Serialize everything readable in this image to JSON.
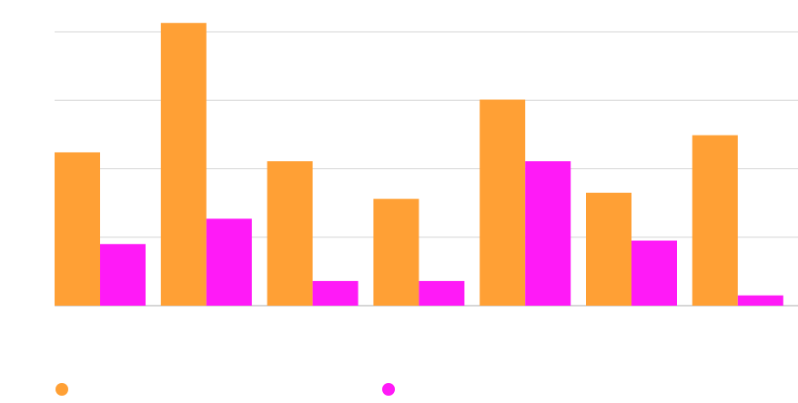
{
  "chart_data": {
    "type": "bar",
    "title": "",
    "xlabel": "",
    "ylabel": "",
    "categories": [
      "",
      "",
      "",
      "",
      "",
      "",
      ""
    ],
    "ylim": [
      0,
      4
    ],
    "y_gridlines": [
      0,
      1,
      2,
      3,
      4
    ],
    "grid": true,
    "legend_position": "bottom",
    "series": [
      {
        "name": "",
        "color": "#ffa035",
        "values": [
          2.24,
          4.13,
          2.11,
          1.56,
          3.01,
          1.65,
          2.49
        ]
      },
      {
        "name": "",
        "color": "#ff1af7",
        "values": [
          0.9,
          1.27,
          0.36,
          0.36,
          2.11,
          0.95,
          0.15
        ]
      }
    ]
  }
}
